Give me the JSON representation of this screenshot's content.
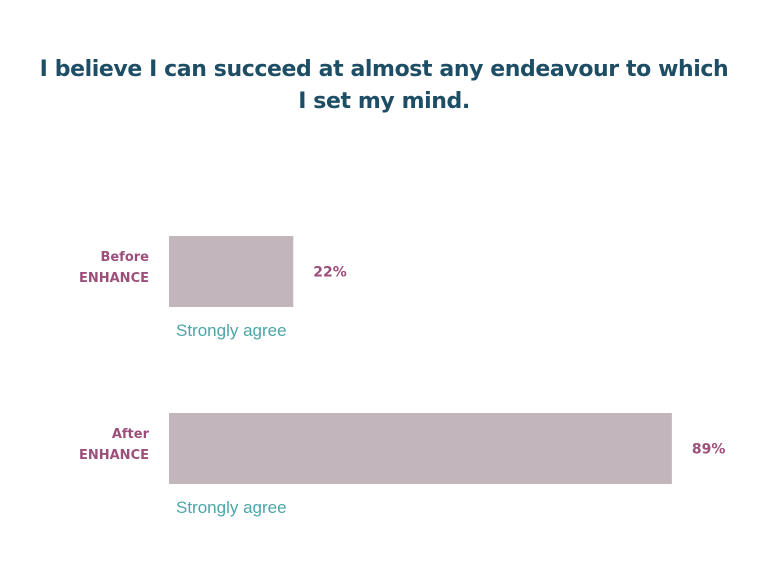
{
  "title_line1": "I believe I can succeed at almost any endeavour to which",
  "title_line2": "I set my mind.",
  "colors": {
    "title": "#1e4e66",
    "bar": "#c2b6bc",
    "row_label": "#9c4f7a",
    "category_label": "#4aa6a8"
  },
  "chart_data": {
    "type": "bar",
    "orientation": "horizontal",
    "title": "I believe I can succeed at almost any endeavour to which I set my mind.",
    "xlim": [
      0,
      100
    ],
    "series": [
      {
        "label_lines": [
          "Before",
          "ENHANCE"
        ],
        "category": "Strongly agree",
        "value": 22,
        "value_label": "22%"
      },
      {
        "label_lines": [
          "After",
          "ENHANCE"
        ],
        "category": "Strongly agree",
        "value": 89,
        "value_label": "89%"
      }
    ],
    "grid": false,
    "legend": "none"
  }
}
